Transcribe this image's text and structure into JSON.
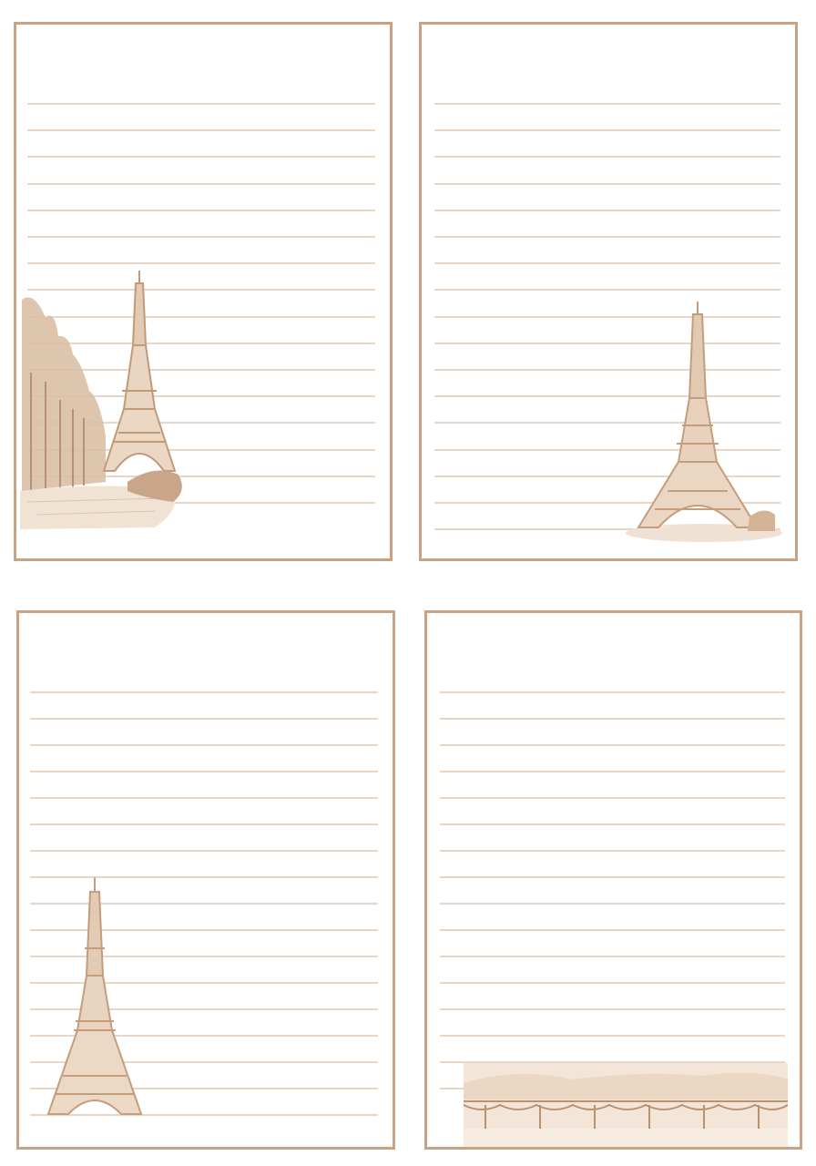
{
  "page": {
    "background": "#ffffff"
  },
  "theme": {
    "border_color": "#c9a184",
    "rule_color": "#e8d6c6",
    "sepia_dark": "#c7a07e",
    "sepia_light": "#ead8c4"
  },
  "sheets": [
    {
      "name": "stationery-sheet-tree-lined-eiffel",
      "illustration": "eiffel-tower-avenue-trees-icon",
      "ruled_lines": 16
    },
    {
      "name": "stationery-sheet-eiffel-right",
      "illustration": "eiffel-tower-icon",
      "ruled_lines": 17
    },
    {
      "name": "stationery-sheet-eiffel-left",
      "illustration": "eiffel-tower-icon",
      "ruled_lines": 17
    },
    {
      "name": "stationery-sheet-seine-bridge",
      "illustration": "pont-des-arts-bridge-icon",
      "ruled_lines": 16
    }
  ]
}
